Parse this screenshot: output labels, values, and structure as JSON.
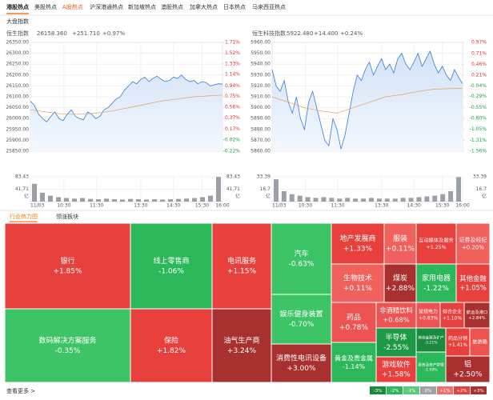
{
  "tabs": [
    "港股热点",
    "美股热点",
    "A股热点",
    "沪深港通热点",
    "新加坡热点",
    "澳股热点",
    "加拿大热点",
    "日本热点",
    "马来西亚热点"
  ],
  "active_tab": 0,
  "highlight_tab": 2,
  "section_title": "大盘指数",
  "charts": [
    {
      "type": "line",
      "name": "恒生指数",
      "price": "26158.360",
      "change": "+251.710",
      "change_pct": "+0.97%",
      "ylim": [
        25850,
        26350
      ],
      "yticks": [
        {
          "value": 26350,
          "label": "26350.00"
        },
        {
          "value": 26300,
          "label": "26300.00"
        },
        {
          "value": 26250,
          "label": "26250.00"
        },
        {
          "value": 26200,
          "label": "26200.00"
        },
        {
          "value": 26150,
          "label": "26150.00"
        },
        {
          "value": 26100,
          "label": "26100.00"
        },
        {
          "value": 26050,
          "label": "26050.00"
        },
        {
          "value": 26000,
          "label": "26000.00"
        },
        {
          "value": 25950,
          "label": "25950.00"
        },
        {
          "value": 25900,
          "label": "25900.00"
        },
        {
          "value": 25850,
          "label": "25850.00"
        }
      ],
      "y2lim": [
        -0.22,
        1.71
      ],
      "y2ticks": [
        {
          "value": 1.71,
          "label": "1.71%"
        },
        {
          "value": 1.52,
          "label": "1.52%"
        },
        {
          "value": 1.33,
          "label": "1.33%"
        },
        {
          "value": 1.14,
          "label": "1.14%"
        },
        {
          "value": 0.94,
          "label": "0.94%"
        },
        {
          "value": 0.75,
          "label": "0.75%"
        },
        {
          "value": 0.56,
          "label": "0.56%"
        },
        {
          "value": 0.37,
          "label": "0.37%"
        },
        {
          "value": 0.17,
          "label": "0.17%"
        },
        {
          "value": -0.02,
          "label": "-0.02%"
        },
        {
          "value": -0.22,
          "label": "-0.22%"
        }
      ],
      "xlim": [
        0,
        47
      ],
      "xticks": [
        {
          "value": 0,
          "label": "11/03"
        },
        {
          "value": 8.2,
          "label": "10:30"
        },
        {
          "value": 16.2,
          "label": "11:30"
        },
        {
          "value": 27,
          "label": "13:30"
        },
        {
          "value": 35,
          "label": "14:30"
        },
        {
          "value": 42,
          "label": "15:30"
        },
        {
          "value": 47,
          "label": "16:00"
        }
      ],
      "series": [
        {
          "color": "#3a7bd5",
          "values": [
            26080,
            26060,
            26020,
            26000,
            25985,
            26010,
            26030,
            26000,
            25990,
            26020,
            26040,
            26010,
            26000,
            25995,
            26030,
            26020,
            26000,
            26010,
            26040,
            26050,
            26070,
            26090,
            26100,
            26130,
            26150,
            26170,
            26160,
            26180,
            26190,
            26170,
            26185,
            26195,
            26180,
            26170,
            26175,
            26190,
            26185,
            26200,
            26180,
            26170,
            26175,
            26160,
            26170,
            26165,
            26150,
            26155,
            26160,
            26158
          ]
        },
        {
          "color": "#e0a060",
          "x": [
            0,
            4,
            8,
            12,
            16,
            20,
            24,
            28,
            32,
            36,
            40,
            47
          ],
          "values": [
            26040,
            26030,
            26020,
            26020,
            26025,
            26035,
            26050,
            26065,
            26080,
            26090,
            26100,
            26108
          ]
        }
      ],
      "volume": {
        "color": "#9aa0a6",
        "ylim": [
          0,
          83.43
        ],
        "yticks": [
          83.43,
          41.71
        ],
        "unit": "亿",
        "values": [
          60,
          30,
          20,
          15,
          12,
          10,
          12,
          9,
          8,
          10,
          8,
          7,
          9,
          8,
          7,
          8,
          7,
          8,
          9,
          10,
          12,
          15,
          20,
          83
        ]
      }
    },
    {
      "type": "line",
      "name": "恒生科技指数",
      "price": "5922.480",
      "change": "+14.400",
      "change_pct": "+0.24%",
      "ylim": [
        5860,
        5960
      ],
      "yticks": [
        {
          "value": 5960,
          "label": "5960.00"
        },
        {
          "value": 5950,
          "label": "5950.00"
        },
        {
          "value": 5940,
          "label": "5940.00"
        },
        {
          "value": 5930,
          "label": "5930.00"
        },
        {
          "value": 5920,
          "label": "5920.00"
        },
        {
          "value": 5910,
          "label": "5910.00"
        },
        {
          "value": 5900,
          "label": "5900.00"
        },
        {
          "value": 5890,
          "label": "5890.00"
        },
        {
          "value": 5880,
          "label": "5880.00"
        },
        {
          "value": 5870,
          "label": "5870.00"
        },
        {
          "value": 5860,
          "label": "5860.00"
        }
      ],
      "y2lim": [
        -1.56,
        0.97
      ],
      "y2ticks": [
        {
          "value": 0.97,
          "label": "0.97%"
        },
        {
          "value": 0.71,
          "label": "0.71%"
        },
        {
          "value": 0.46,
          "label": "0.46%"
        },
        {
          "value": 0.21,
          "label": "0.21%"
        },
        {
          "value": -0.04,
          "label": "-0.04%"
        },
        {
          "value": -0.29,
          "label": "-0.29%"
        },
        {
          "value": -0.55,
          "label": "-0.55%"
        },
        {
          "value": -0.8,
          "label": "-0.80%"
        },
        {
          "value": -1.05,
          "label": "-1.05%"
        },
        {
          "value": -1.31,
          "label": "-1.31%"
        },
        {
          "value": -1.56,
          "label": "-1.56%"
        }
      ],
      "xlim": [
        0,
        47
      ],
      "xticks": [
        {
          "value": 0,
          "label": "11/03"
        },
        {
          "value": 8.2,
          "label": "10:30"
        },
        {
          "value": 16.2,
          "label": "11:30"
        },
        {
          "value": 27,
          "label": "13:30"
        },
        {
          "value": 35,
          "label": "14:30"
        },
        {
          "value": 42,
          "label": "15:30"
        },
        {
          "value": 47,
          "label": "16:00"
        }
      ],
      "series": [
        {
          "color": "#3a7bd5",
          "values": [
            5935,
            5920,
            5915,
            5925,
            5905,
            5895,
            5910,
            5890,
            5880,
            5905,
            5915,
            5900,
            5885,
            5870,
            5865,
            5890,
            5880,
            5862,
            5875,
            5895,
            5915,
            5930,
            5925,
            5935,
            5942,
            5930,
            5938,
            5945,
            5935,
            5940,
            5932,
            5945,
            5950,
            5940,
            5935,
            5942,
            5950,
            5938,
            5945,
            5952,
            5940,
            5932,
            5938,
            5930,
            5925,
            5935,
            5928,
            5922
          ]
        },
        {
          "color": "#e0a060",
          "x": [
            0,
            4,
            8,
            12,
            16,
            20,
            24,
            28,
            32,
            36,
            40,
            47
          ],
          "values": [
            5910,
            5905,
            5900,
            5897,
            5895,
            5900,
            5905,
            5910,
            5912,
            5915,
            5917,
            5918
          ]
        }
      ],
      "volume": {
        "color": "#9aa0a6",
        "ylim": [
          0,
          33.39
        ],
        "yticks": [
          33.39,
          16.7
        ],
        "unit": "亿",
        "values": [
          30,
          14,
          10,
          8,
          6,
          5,
          6,
          5,
          4,
          5,
          4,
          4,
          5,
          4,
          4,
          4,
          5,
          5,
          6,
          7,
          8,
          10,
          14,
          33
        ]
      }
    }
  ],
  "heatmap_tabs": [
    "行业热力图",
    "领涨板块"
  ],
  "tiles": [
    {
      "name": "银行",
      "change": "+1.85%",
      "color": "#e8403d"
    },
    {
      "name": "线上零售商",
      "change": "-1.06%",
      "color": "#2cb85a"
    },
    {
      "name": "电讯服务",
      "change": "+1.15%",
      "color": "#e8403d"
    },
    {
      "name": "数码解决方案服务",
      "change": "-0.35%",
      "color": "#3dc467"
    },
    {
      "name": "保险",
      "change": "+1.82%",
      "color": "#e8403d"
    },
    {
      "name": "油气生产商",
      "change": "+3.24%",
      "color": "#a8302f"
    },
    {
      "name": "汽车",
      "change": "-0.63%",
      "color": "#3dc467"
    },
    {
      "name": "娱乐健身装置",
      "change": "-0.70%",
      "color": "#3dc467"
    },
    {
      "name": "消费性电讯设备",
      "change": "+3.00%",
      "color": "#a8302f"
    },
    {
      "name": "地产发展商",
      "change": "+1.33%",
      "color": "#e8403d"
    },
    {
      "name": "生物技术",
      "change": "+0.11%",
      "color": "#f0605d"
    },
    {
      "name": "药品",
      "change": "+0.78%",
      "color": "#ed5350"
    },
    {
      "name": "黄金及贵金属",
      "change": "-1.14%",
      "color": "#2cb85a"
    },
    {
      "name": "服装",
      "change": "+0.11%",
      "color": "#f0605d"
    },
    {
      "name": "互动媒体及服务",
      "change": "+1.25%",
      "color": "#e8403d"
    },
    {
      "name": "证券及经纪",
      "change": "+0.20%",
      "color": "#f0605d"
    },
    {
      "name": "煤炭",
      "change": "+2.88%",
      "color": "#a8302f"
    },
    {
      "name": "家用电器",
      "change": "-1.22%",
      "color": "#2cb85a"
    },
    {
      "name": "其他金融",
      "change": "+1.05%",
      "color": "#e8403d"
    },
    {
      "name": "非酒精饮料",
      "change": "+0.68%",
      "color": "#ed5350"
    },
    {
      "name": "半导体",
      "change": "-2.55%",
      "color": "#1e9a47"
    },
    {
      "name": "游戏软件",
      "change": "+1.58%",
      "color": "#e8403d"
    },
    {
      "name": "常规电力",
      "change": "+0.83%",
      "color": "#ed5350"
    },
    {
      "name": "综合企业",
      "change": "+1.10%",
      "color": "#e8403d"
    },
    {
      "name": "航运及港口",
      "change": "+2.84%",
      "color": "#a8302f"
    },
    {
      "name": "其他金属及矿产",
      "change": "-3.21%",
      "color": "#1a8a3e"
    },
    {
      "name": "药品分销",
      "change": "+1.41%",
      "color": "#e8403d"
    },
    {
      "name": "旅游路",
      "color": "#ed5350"
    },
    {
      "name": "投资及资产管理",
      "change": "-1.09%",
      "color": "#2cb85a"
    },
    {
      "name": "铝",
      "change": "+2.50%",
      "color": "#a8302f"
    }
  ],
  "footer_link": "查看更多 >",
  "legend": [
    {
      "label": "-3%",
      "color": "#1a8a3e"
    },
    {
      "label": "-2%",
      "color": "#2cb85a"
    },
    {
      "label": "-1%",
      "color": "#5cc97e"
    },
    {
      "label": "0%",
      "color": "#a0a4a8"
    },
    {
      "label": "+1%",
      "color": "#f07070"
    },
    {
      "label": "+2%",
      "color": "#e8403d"
    },
    {
      "label": "+3%",
      "color": "#a8302f"
    }
  ]
}
